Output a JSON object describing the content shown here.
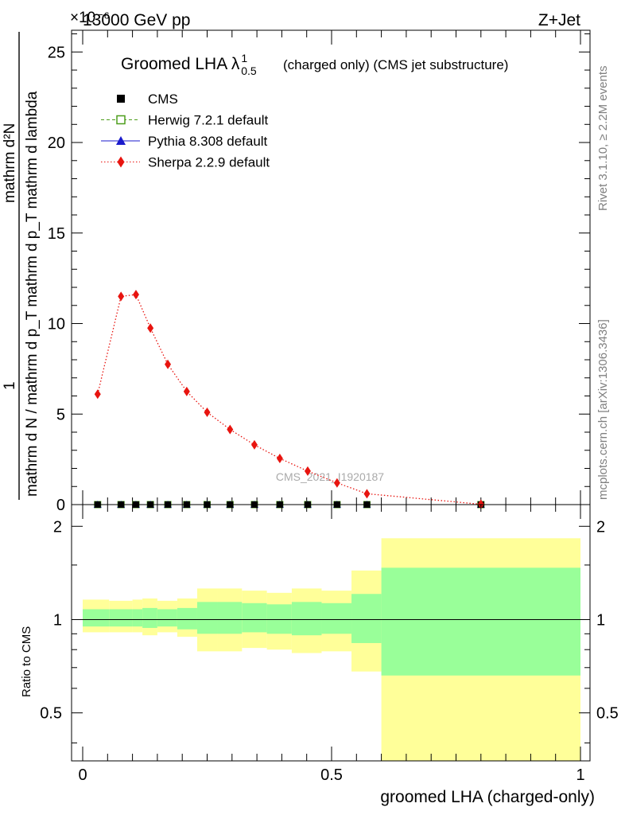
{
  "header": {
    "left": "13000 GeV pp",
    "right": "Z+Jet",
    "exponent": "×10⁻⁶",
    "side_top": "Rivet 3.1.10, ≥ 2.2M events",
    "side_bottom": "mcplots.cern.ch [arXiv:1306.3436]"
  },
  "chart_data": [
    {
      "type": "line",
      "title": "Groomed LHA λ",
      "title_sup": "1",
      "title_sub": "0.5",
      "title_suffix": "(charged only) (CMS jet substructure)",
      "ylabel_num": "mathrm d²N",
      "ylabel_den": "mathrm d N / mathrm d p_T mathrm d p_T mathrm d lambda",
      "ylabel_one": "1",
      "watermark": "CMS_2021_I1920187",
      "xlim": [
        0,
        1
      ],
      "ylim": [
        0,
        26.2
      ],
      "yticks": [
        0,
        5,
        10,
        15,
        20,
        25
      ],
      "yticklabels": [
        "0",
        "5",
        "10",
        "15",
        "20",
        "25"
      ],
      "legend_position": "top-left",
      "legend": [
        {
          "label": "CMS",
          "color": "#000000",
          "marker": "square"
        },
        {
          "label": "Herwig 7.2.1 default",
          "color": "#4d9e1c",
          "marker": "open-square"
        },
        {
          "label": "Pythia 8.308 default",
          "color": "#1a1acc",
          "marker": "triangle"
        },
        {
          "label": "Sherpa 2.2.9 default",
          "color": "#e8140f",
          "marker": "diamond"
        }
      ],
      "series": [
        {
          "name": "CMS",
          "x": [
            0.03,
            0.077,
            0.107,
            0.136,
            0.171,
            0.209,
            0.25,
            0.296,
            0.345,
            0.396,
            0.452,
            0.511,
            0.571,
            0.8
          ],
          "values": [
            0,
            0,
            0,
            0,
            0,
            0,
            0,
            0,
            0,
            0,
            0,
            0,
            0,
            0
          ]
        },
        {
          "name": "Sherpa 2.2.9 default",
          "x": [
            0.03,
            0.077,
            0.107,
            0.136,
            0.171,
            0.209,
            0.25,
            0.296,
            0.345,
            0.396,
            0.452,
            0.511,
            0.571,
            0.8
          ],
          "values": [
            6.1,
            11.5,
            11.6,
            9.75,
            7.75,
            6.25,
            5.1,
            4.15,
            3.3,
            2.55,
            1.85,
            1.2,
            0.6,
            0.02
          ]
        }
      ]
    },
    {
      "type": "area",
      "ylabel": "Ratio to CMS",
      "xlabel": "groomed LHA (charged-only)",
      "xlim": [
        0,
        1
      ],
      "ylim": [
        0.35,
        2.35
      ],
      "yticks": [
        0.5,
        1,
        2
      ],
      "yticklabels": [
        "0.5",
        "1",
        "2"
      ],
      "xticks": [
        0,
        0.5,
        1
      ],
      "xticklabels": [
        "0",
        "0.5",
        "1"
      ],
      "band_colors": {
        "outer": "#ffff99",
        "inner": "#99ff99"
      },
      "bins": [
        [
          0.0,
          0.053
        ],
        [
          0.053,
          0.1
        ],
        [
          0.1,
          0.12
        ],
        [
          0.12,
          0.15
        ],
        [
          0.15,
          0.19
        ],
        [
          0.19,
          0.23
        ],
        [
          0.23,
          0.27
        ],
        [
          0.27,
          0.32
        ],
        [
          0.32,
          0.37
        ],
        [
          0.37,
          0.42
        ],
        [
          0.42,
          0.48
        ],
        [
          0.48,
          0.54
        ],
        [
          0.54,
          0.6
        ],
        [
          0.6,
          1.0
        ]
      ],
      "outer_low": [
        0.91,
        0.91,
        0.91,
        0.89,
        0.91,
        0.88,
        0.79,
        0.79,
        0.81,
        0.8,
        0.78,
        0.79,
        0.68,
        0.35
      ],
      "outer_high": [
        1.16,
        1.15,
        1.16,
        1.17,
        1.15,
        1.17,
        1.26,
        1.26,
        1.24,
        1.22,
        1.26,
        1.24,
        1.44,
        1.83
      ],
      "inner_low": [
        0.95,
        0.95,
        0.95,
        0.94,
        0.95,
        0.93,
        0.9,
        0.9,
        0.91,
        0.9,
        0.89,
        0.9,
        0.84,
        0.66
      ],
      "inner_high": [
        1.08,
        1.08,
        1.08,
        1.09,
        1.08,
        1.09,
        1.14,
        1.14,
        1.13,
        1.12,
        1.14,
        1.13,
        1.21,
        1.47
      ],
      "reference": 1
    }
  ]
}
